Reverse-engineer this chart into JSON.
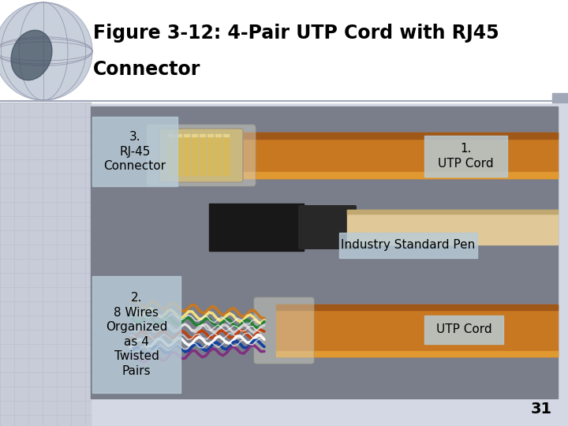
{
  "title_line1": "Figure 3-12: 4-Pair UTP Cord with RJ45",
  "title_line2": "Connector",
  "page_number": "31",
  "labels": {
    "label1": "3.\nRJ-45\nConnector",
    "label2": "1.\nUTP Cord",
    "label3": "Industry Standard Pen",
    "label4": "2.\n8 Wires\nOrganized\nas 4\nTwisted\nPairs",
    "label5": "UTP Cord"
  },
  "bg_color": "#d4d8e4",
  "title_bg": "#ffffff",
  "photo_bg": "#8a8e98",
  "label_bg": "#b8ccd8",
  "wire_colors": [
    "#c87820",
    "#f0e080",
    "#208030",
    "#d0d0d0",
    "#c04010",
    "#f8f8f8",
    "#1040a0",
    "#803080"
  ],
  "title_fontsize": 17,
  "label_fontsize": 11,
  "page_num_fontsize": 14
}
